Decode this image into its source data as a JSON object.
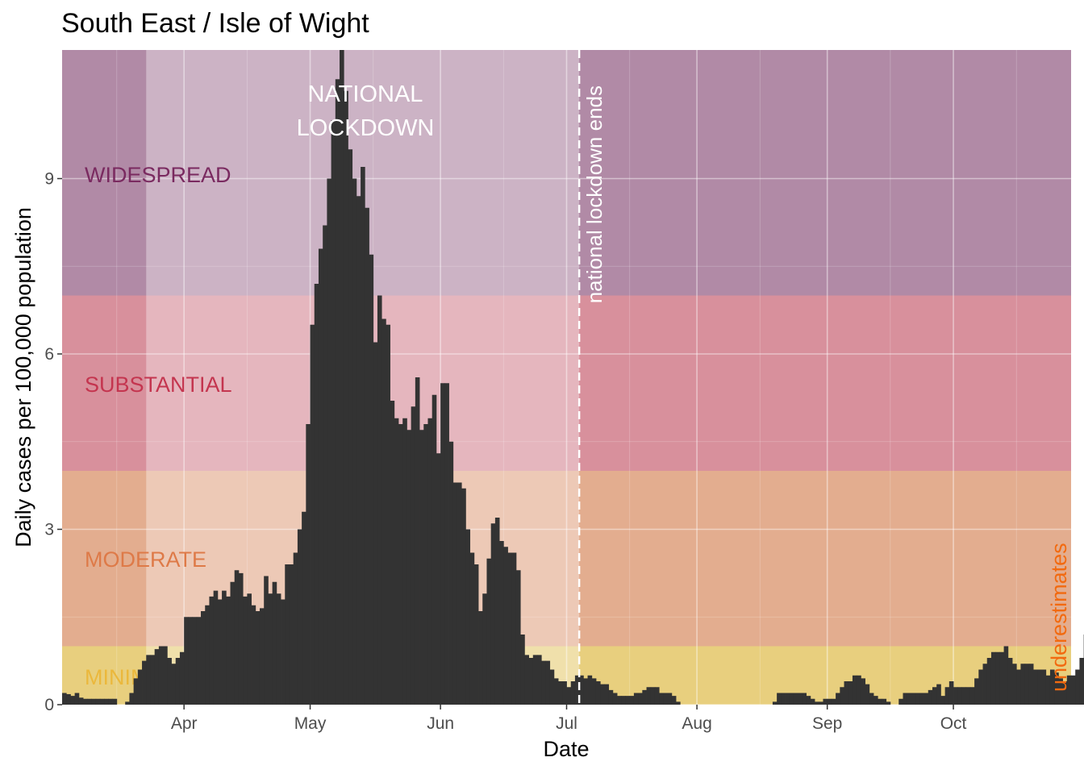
{
  "chart_data": {
    "type": "bar",
    "title": "South East / Isle of Wight",
    "xlabel": "Date",
    "ylabel": "Daily cases per 100,000 population",
    "x_range": [
      "2020-03-03",
      "2020-10-29"
    ],
    "ylim": [
      0,
      11.2
    ],
    "y_ticks": [
      0,
      3,
      6,
      9
    ],
    "y_tick_labels": [
      "0",
      "3",
      "6",
      "9"
    ],
    "x_ticks": [
      "2020-04-01",
      "2020-05-01",
      "2020-06-01",
      "2020-07-01",
      "2020-08-01",
      "2020-09-01",
      "2020-10-01"
    ],
    "x_tick_labels": [
      "Apr",
      "May",
      "Jun",
      "Jul",
      "Aug",
      "Sep",
      "Oct"
    ],
    "grid": true,
    "bar_color": "#333333",
    "bands": [
      {
        "label": "MINIMAL",
        "from": 0,
        "to": 1,
        "color": "#e8cf7e"
      },
      {
        "label": "MODERATE",
        "from": 1,
        "to": 4,
        "color": "#e3ad8f"
      },
      {
        "label": "SUBSTANTIAL",
        "from": 4,
        "to": 7,
        "color": "#d8909c"
      },
      {
        "label": "WIDESPREAD",
        "from": 7,
        "to": 11.2,
        "color": "#b18aa6"
      }
    ],
    "band_label_colors": {
      "WIDESPREAD": "#7a2a60",
      "SUBSTANTIAL": "#c4354f",
      "MODERATE": "#de7a48",
      "MINIMAL": "#ebb83c"
    },
    "lockdown_period": {
      "start": "2020-03-23",
      "end": "2020-07-04",
      "label_lines": [
        "NATIONAL",
        "LOCKDOWN"
      ]
    },
    "vline": {
      "date": "2020-07-04",
      "label": "national lockdown ends"
    },
    "annotation_right": "underestimates",
    "start_date": "2020-03-03",
    "values": [
      0.2,
      0.18,
      0.15,
      0.2,
      0.12,
      0.1,
      0.1,
      0.1,
      0.1,
      0.1,
      0.1,
      0.1,
      0.1,
      0,
      0,
      0.05,
      0.2,
      0.45,
      0.6,
      0.75,
      0.85,
      0.85,
      0.95,
      1.0,
      1.0,
      0.8,
      0.7,
      0.8,
      0.9,
      1.5,
      1.5,
      1.5,
      1.5,
      1.6,
      1.7,
      1.85,
      1.95,
      1.8,
      1.95,
      1.85,
      2.1,
      2.3,
      2.25,
      1.85,
      1.9,
      1.7,
      1.6,
      1.65,
      2.2,
      1.9,
      2.1,
      1.9,
      1.8,
      2.4,
      2.4,
      2.6,
      3.0,
      3.3,
      4.8,
      6.5,
      7.2,
      7.8,
      8.2,
      9.0,
      10.0,
      10.7,
      11.2,
      10.5,
      9.5,
      9.0,
      8.7,
      9.2,
      8.5,
      7.7,
      6.2,
      7.0,
      6.6,
      6.5,
      5.2,
      4.9,
      4.8,
      4.9,
      4.7,
      5.1,
      5.6,
      4.7,
      4.8,
      4.9,
      5.3,
      4.3,
      5.5,
      5.5,
      4.5,
      3.8,
      3.8,
      3.7,
      3.0,
      2.6,
      2.4,
      1.6,
      1.9,
      2.5,
      3.1,
      3.2,
      2.8,
      2.7,
      2.6,
      2.6,
      2.3,
      1.2,
      0.85,
      0.8,
      0.85,
      0.85,
      0.75,
      0.75,
      0.6,
      0.45,
      0.4,
      0.4,
      0.3,
      0.4,
      0.5,
      0.5,
      0.45,
      0.5,
      0.45,
      0.4,
      0.35,
      0.35,
      0.25,
      0.2,
      0.15,
      0.15,
      0.15,
      0.15,
      0.2,
      0.2,
      0.25,
      0.3,
      0.3,
      0.3,
      0.2,
      0.2,
      0.2,
      0.15,
      0.05,
      0,
      0,
      0,
      0,
      0,
      0,
      0,
      0,
      0,
      0,
      0,
      0,
      0,
      0,
      0,
      0,
      0,
      0,
      0,
      0,
      0,
      0,
      0.05,
      0.2,
      0.2,
      0.2,
      0.2,
      0.2,
      0.2,
      0.2,
      0.15,
      0.1,
      0.05,
      0.05,
      0.1,
      0.1,
      0.1,
      0.2,
      0.3,
      0.4,
      0.4,
      0.5,
      0.5,
      0.45,
      0.35,
      0.2,
      0.15,
      0.1,
      0.1,
      0.05,
      0,
      0,
      0.1,
      0.2,
      0.2,
      0.2,
      0.2,
      0.2,
      0.2,
      0.25,
      0.3,
      0.35,
      0.15,
      0.3,
      0.4,
      0.3,
      0.3,
      0.3,
      0.3,
      0.3,
      0.45,
      0.6,
      0.7,
      0.8,
      0.9,
      0.9,
      0.9,
      1.0,
      0.8,
      0.7,
      0.6,
      0.7,
      0.7,
      0.7,
      0.6,
      0.6,
      0.6,
      0.5,
      0.6,
      0.55,
      0.45,
      0.4,
      0.5,
      0.5,
      0.6,
      0.8,
      1.2,
      1.3,
      1.4,
      1.6,
      1.6,
      1.5,
      1.8,
      1.5,
      1.3,
      1.4,
      1.8,
      1.8,
      1.8,
      1.9,
      2.5,
      2.7,
      3.0,
      2.8,
      2.5,
      2.6,
      3.0,
      3.6,
      3.5,
      3.5,
      3.5,
      3.3,
      3.4,
      3.3,
      3.3,
      3.6,
      4.0,
      4.0,
      4.8,
      5.0,
      5.4,
      5.2,
      5.4,
      5.6,
      6.1,
      5.5,
      4.5,
      5.0,
      4.5,
      4.8,
      4.8
    ]
  }
}
